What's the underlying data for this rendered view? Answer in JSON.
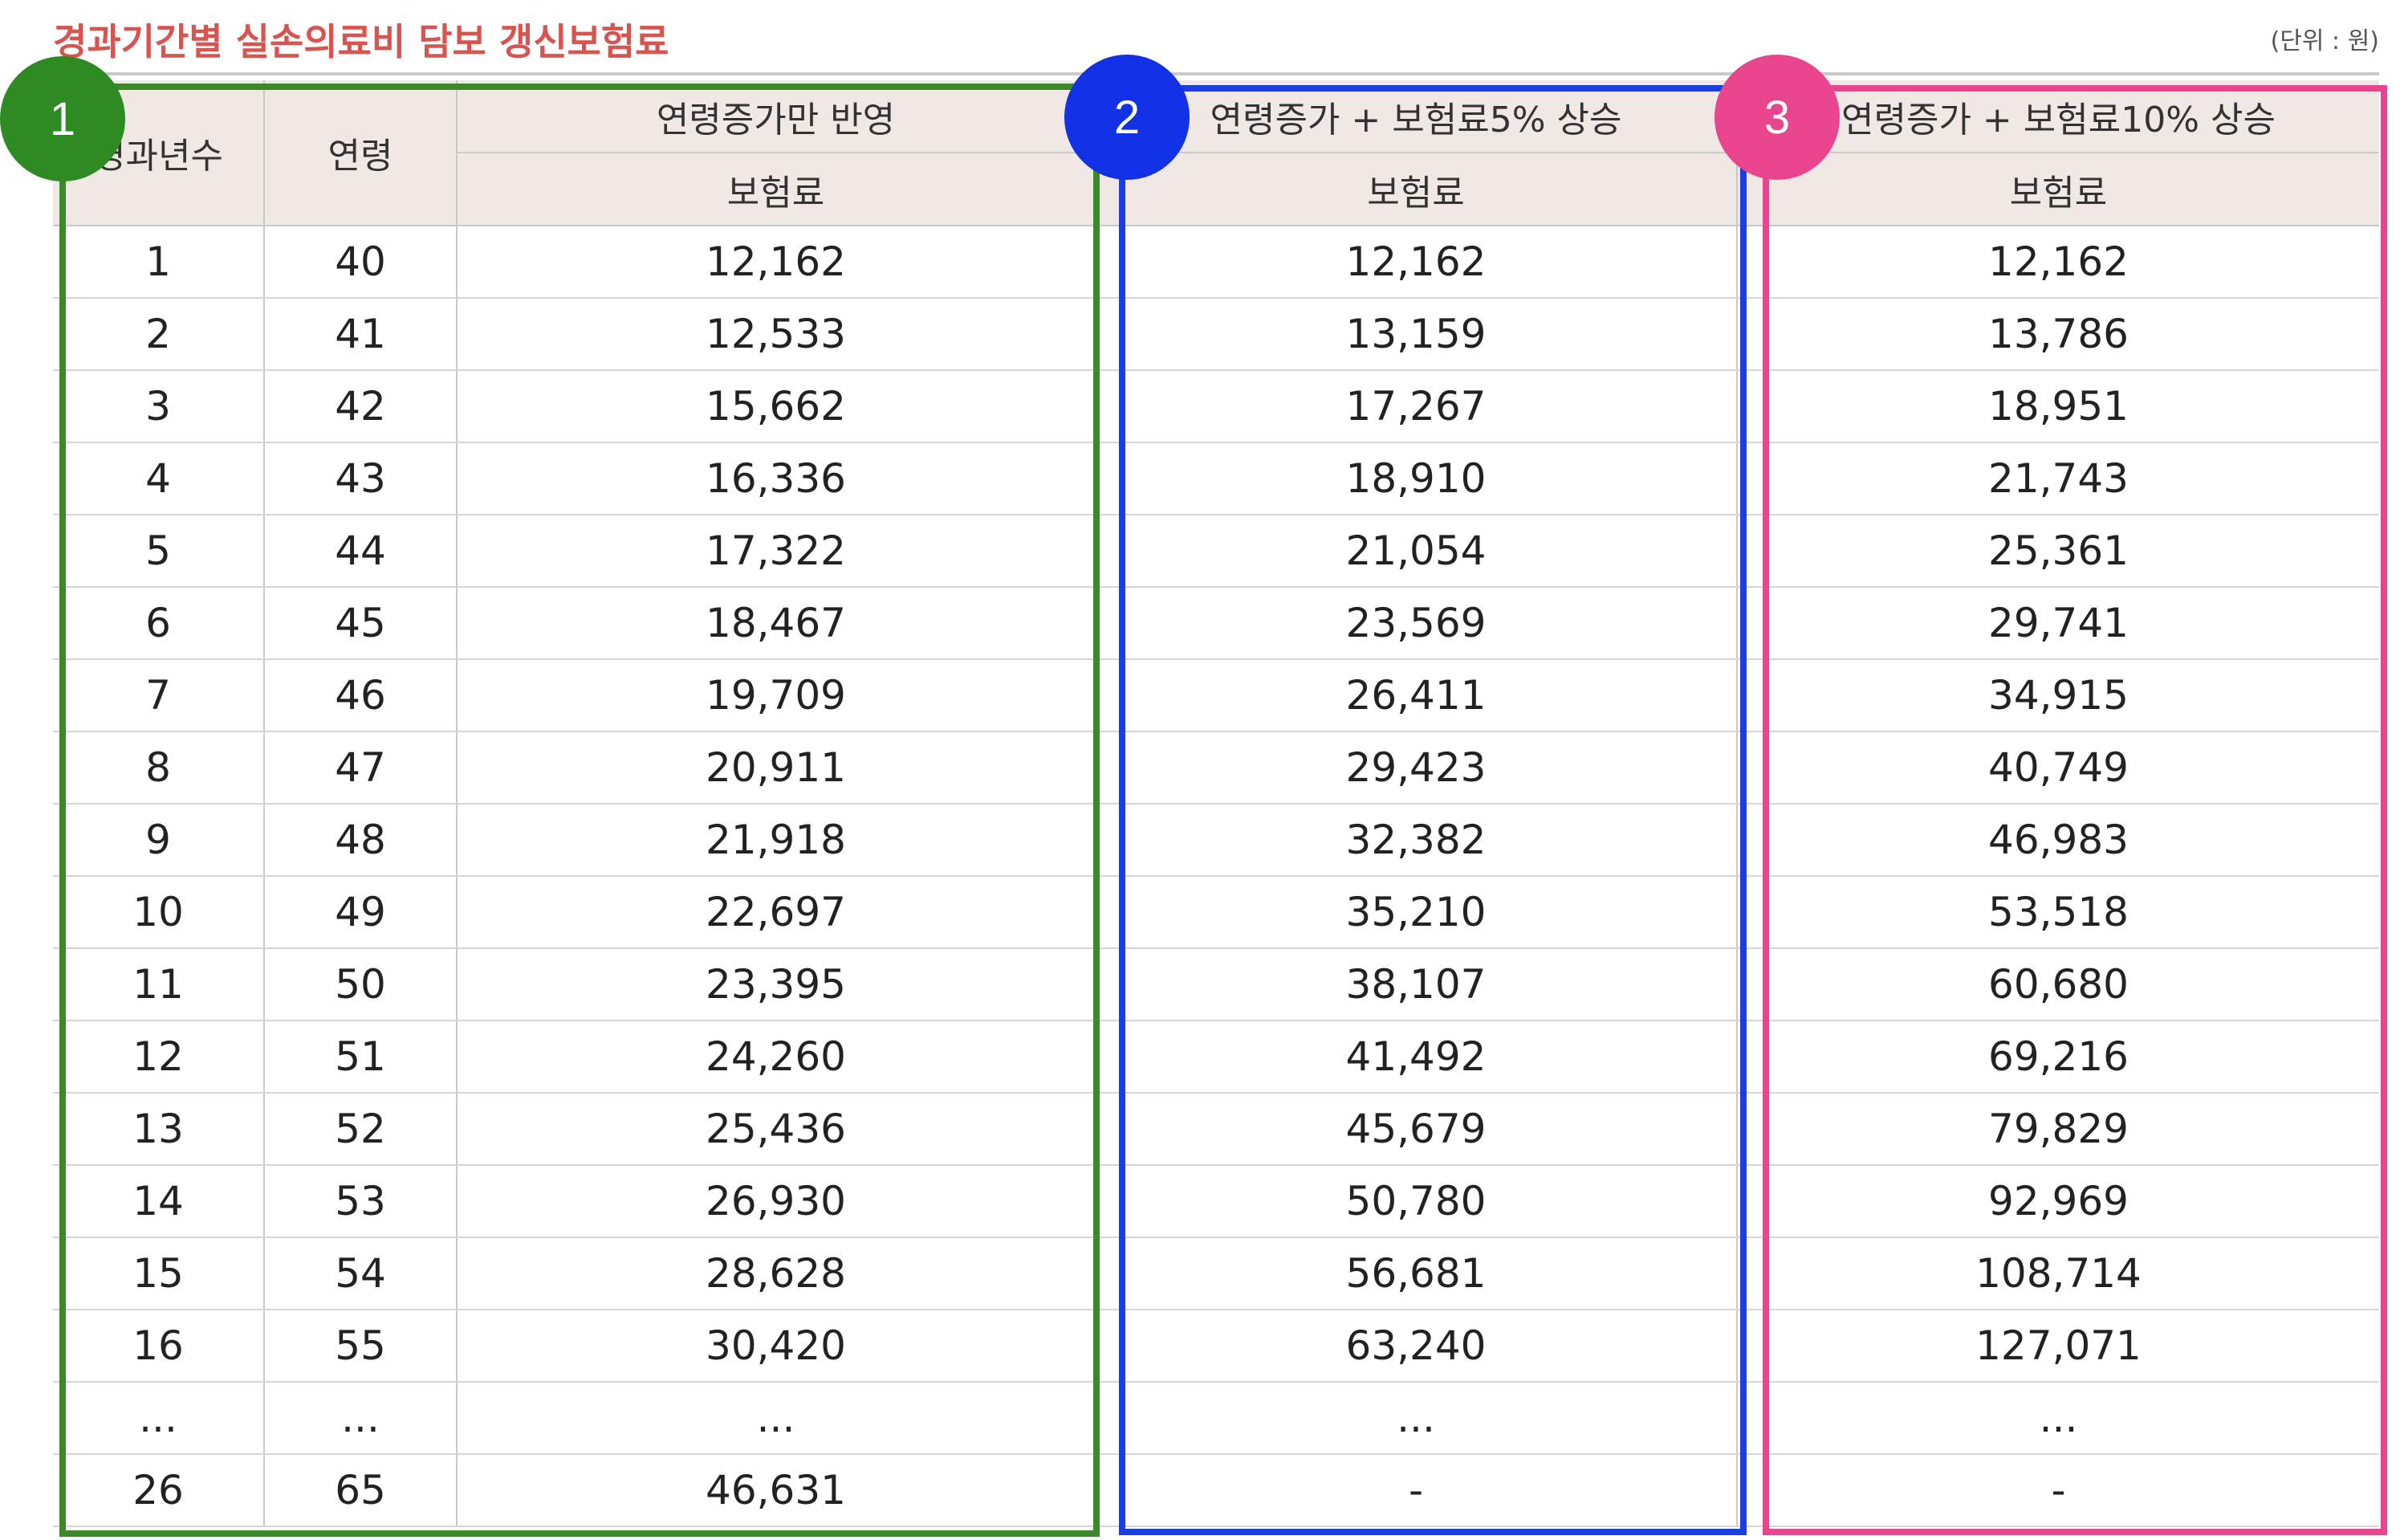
{
  "title": "경과기간별 실손의료비 담보 갱신보험료",
  "unit": "(단위 : 원)",
  "badges": [
    "1",
    "2",
    "3"
  ],
  "headers": {
    "elapsed_years": "경과년수",
    "age": "연령",
    "age_only": "연령증가만 반영",
    "plus5": "연령증가 + 보험료5% 상승",
    "plus10": "연령증가 + 보험료10% 상승",
    "premium": "보험료"
  },
  "rows": [
    [
      "1",
      "40",
      "12,162",
      "12,162",
      "12,162"
    ],
    [
      "2",
      "41",
      "12,533",
      "13,159",
      "13,786"
    ],
    [
      "3",
      "42",
      "15,662",
      "17,267",
      "18,951"
    ],
    [
      "4",
      "43",
      "16,336",
      "18,910",
      "21,743"
    ],
    [
      "5",
      "44",
      "17,322",
      "21,054",
      "25,361"
    ],
    [
      "6",
      "45",
      "18,467",
      "23,569",
      "29,741"
    ],
    [
      "7",
      "46",
      "19,709",
      "26,411",
      "34,915"
    ],
    [
      "8",
      "47",
      "20,911",
      "29,423",
      "40,749"
    ],
    [
      "9",
      "48",
      "21,918",
      "32,382",
      "46,983"
    ],
    [
      "10",
      "49",
      "22,697",
      "35,210",
      "53,518"
    ],
    [
      "11",
      "50",
      "23,395",
      "38,107",
      "60,680"
    ],
    [
      "12",
      "51",
      "24,260",
      "41,492",
      "69,216"
    ],
    [
      "13",
      "52",
      "25,436",
      "45,679",
      "79,829"
    ],
    [
      "14",
      "53",
      "26,930",
      "50,780",
      "92,969"
    ],
    [
      "15",
      "54",
      "28,628",
      "56,681",
      "108,714"
    ],
    [
      "16",
      "55",
      "30,420",
      "63,240",
      "127,071"
    ],
    [
      "...",
      "...",
      "...",
      "...",
      "..."
    ],
    [
      "26",
      "65",
      "46,631",
      "-",
      "-"
    ]
  ],
  "colors": {
    "title": "#d9534f",
    "header_bg": "#efe8e4",
    "highlight_1": "#3b8a2a",
    "highlight_2": "#1a3ee6",
    "highlight_3": "#e8458e"
  }
}
